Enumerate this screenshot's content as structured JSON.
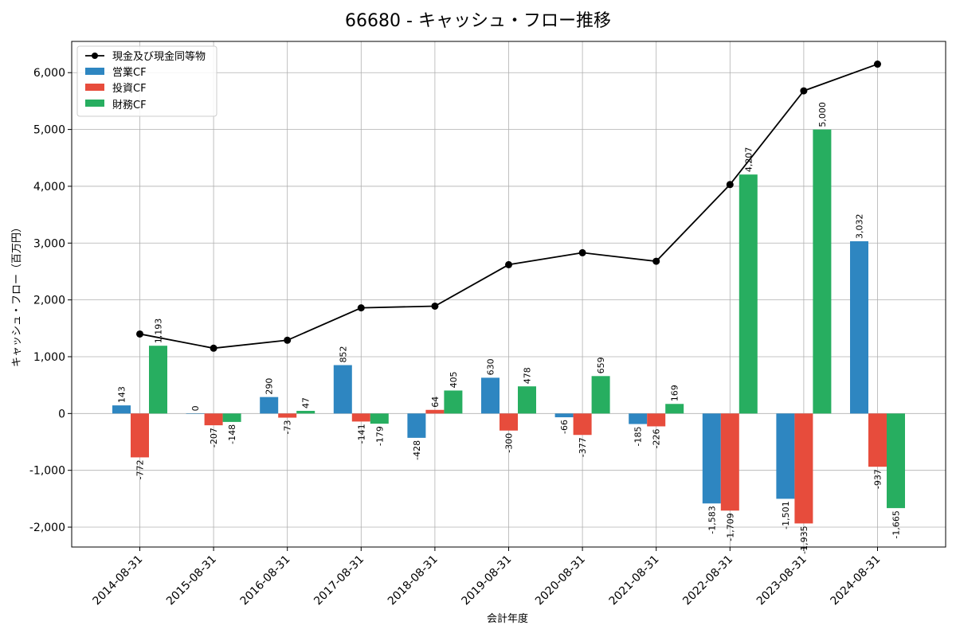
{
  "chart_data": {
    "type": "bar",
    "title": "66680 - キャッシュ・フロー推移",
    "xlabel": "会計年度",
    "ylabel": "キャッシュ・フロー（百万円）",
    "ylim": [
      -2350,
      6550
    ],
    "yticks": [
      -2000,
      -1000,
      0,
      1000,
      2000,
      3000,
      4000,
      5000,
      6000
    ],
    "ytick_labels": [
      "-2,000",
      "-1,000",
      "0",
      "1,000",
      "2,000",
      "3,000",
      "4,000",
      "5,000",
      "6,000"
    ],
    "grid": true,
    "legend_position": "top-left",
    "categories": [
      "2014-08-31",
      "2015-08-31",
      "2016-08-31",
      "2017-08-31",
      "2018-08-31",
      "2019-08-31",
      "2020-08-31",
      "2021-08-31",
      "2022-08-31",
      "2023-08-31",
      "2024-08-31"
    ],
    "series": [
      {
        "name": "営業CF",
        "type": "bar",
        "color": "#2e86c1",
        "values": [
          143,
          0,
          290,
          852,
          -428,
          630,
          -66,
          -185,
          -1583,
          -1501,
          3032
        ],
        "labels": [
          "143",
          "0",
          "290",
          "852",
          "-428",
          "630",
          "-66",
          "-185",
          "-1,583",
          "-1,501",
          "3,032"
        ]
      },
      {
        "name": "投資CF",
        "type": "bar",
        "color": "#e74c3c",
        "values": [
          -772,
          -207,
          -73,
          -141,
          64,
          -300,
          -377,
          -226,
          -1709,
          -1935,
          -937
        ],
        "labels": [
          "-772",
          "-207",
          "-73",
          "-141",
          "64",
          "-300",
          "-377",
          "-226",
          "-1,709",
          "-1,935",
          "-937"
        ]
      },
      {
        "name": "財務CF",
        "type": "bar",
        "color": "#27ae60",
        "values": [
          1193,
          -148,
          47,
          -179,
          405,
          478,
          659,
          169,
          4207,
          5000,
          -1665
        ],
        "labels": [
          "1,193",
          "-148",
          "47",
          "-179",
          "405",
          "478",
          "659",
          "169",
          "4,207",
          "5,000",
          "-1,665"
        ]
      },
      {
        "name": "現金及び現金同等物",
        "type": "line",
        "color": "#000000",
        "values": [
          1400,
          1150,
          1290,
          1860,
          1890,
          2620,
          2830,
          2680,
          4030,
          5680,
          6150
        ]
      }
    ]
  }
}
